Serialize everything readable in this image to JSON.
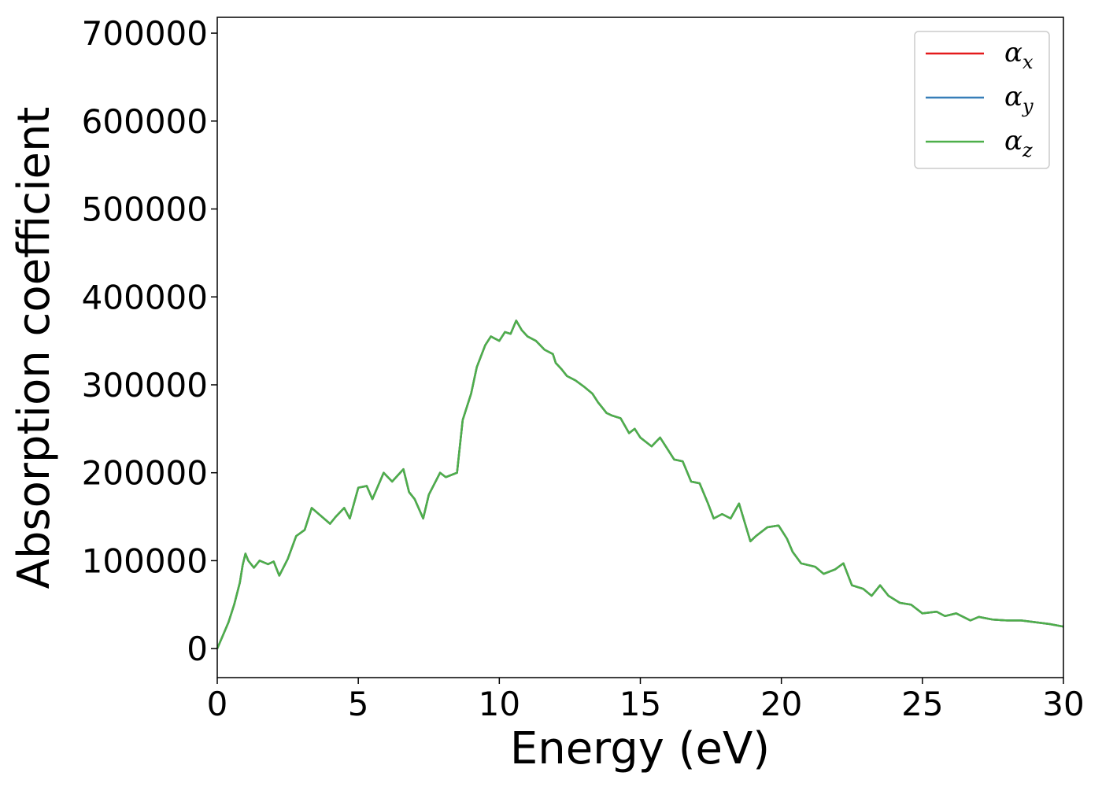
{
  "chart_data": {
    "type": "line",
    "title": "",
    "xlabel": "Energy (eV)",
    "ylabel": "Absorption coefficient",
    "xlim": [
      0,
      30
    ],
    "ylim": [
      -33000,
      718000
    ],
    "xticks": [
      0,
      5,
      10,
      15,
      20,
      25,
      30
    ],
    "yticks": [
      0,
      100000,
      200000,
      300000,
      400000,
      500000,
      600000,
      700000
    ],
    "grid": false,
    "legend_position": "top-right",
    "colors": {
      "x": "#e41a1c",
      "y": "#377eb8",
      "z": "#4daf4a"
    },
    "legend": [
      {
        "symbol": "α",
        "sub": "x"
      },
      {
        "symbol": "α",
        "sub": "y"
      },
      {
        "symbol": "α",
        "sub": "z"
      }
    ],
    "x": [
      0,
      0.2,
      0.4,
      0.6,
      0.8,
      0.9,
      1.0,
      1.1,
      1.3,
      1.5,
      1.8,
      2.0,
      2.2,
      2.5,
      2.8,
      3.1,
      3.35,
      3.6,
      4.0,
      4.2,
      4.5,
      4.7,
      5.0,
      5.3,
      5.5,
      5.9,
      6.2,
      6.6,
      6.8,
      7.0,
      7.3,
      7.5,
      7.9,
      8.1,
      8.5,
      8.7,
      9.0,
      9.2,
      9.5,
      9.7,
      10.0,
      10.2,
      10.4,
      10.6,
      10.8,
      11.0,
      11.3,
      11.6,
      11.9,
      12.0,
      12.2,
      12.4,
      12.7,
      13.0,
      13.3,
      13.5,
      13.8,
      14.0,
      14.3,
      14.6,
      14.8,
      15.0,
      15.4,
      15.7,
      15.9,
      16.2,
      16.5,
      16.8,
      17.1,
      17.4,
      17.6,
      17.9,
      18.2,
      18.5,
      18.9,
      19.1,
      19.5,
      19.9,
      20.2,
      20.4,
      20.7,
      21.2,
      21.5,
      21.9,
      22.2,
      22.5,
      22.9,
      23.2,
      23.5,
      23.8,
      24.2,
      24.6,
      25.0,
      25.5,
      25.8,
      26.2,
      26.7,
      27.0,
      27.5,
      28.0,
      28.5,
      29.0,
      29.5,
      30.0
    ],
    "series": [
      {
        "key": "x",
        "values": [
          0,
          15000,
          30000,
          50000,
          75000,
          95000,
          108000,
          100000,
          92000,
          100000,
          96000,
          99000,
          83000,
          102000,
          128000,
          135000,
          160000,
          153000,
          142000,
          150000,
          160000,
          148000,
          183000,
          185000,
          170000,
          200000,
          190000,
          204000,
          178000,
          170000,
          148000,
          175000,
          200000,
          195000,
          200000,
          260000,
          290000,
          320000,
          345000,
          355000,
          350000,
          360000,
          358000,
          373000,
          362000,
          355000,
          350000,
          340000,
          335000,
          325000,
          318000,
          310000,
          305000,
          298000,
          290000,
          280000,
          268000,
          265000,
          262000,
          245000,
          250000,
          240000,
          230000,
          240000,
          230000,
          215000,
          213000,
          190000,
          188000,
          165000,
          148000,
          153000,
          148000,
          165000,
          122000,
          128000,
          138000,
          140000,
          125000,
          110000,
          97000,
          93000,
          85000,
          90000,
          97000,
          72000,
          68000,
          60000,
          72000,
          60000,
          52000,
          50000,
          40000,
          42000,
          37000,
          40000,
          32000,
          36000,
          33000,
          32000,
          32000,
          30000,
          28000,
          25000
        ]
      },
      {
        "key": "y",
        "values": [
          0,
          15000,
          30000,
          50000,
          75000,
          95000,
          108000,
          100000,
          92000,
          100000,
          96000,
          99000,
          83000,
          102000,
          128000,
          135000,
          160000,
          153000,
          142000,
          150000,
          160000,
          148000,
          183000,
          185000,
          170000,
          200000,
          190000,
          204000,
          178000,
          170000,
          148000,
          175000,
          200000,
          195000,
          200000,
          260000,
          290000,
          320000,
          345000,
          355000,
          350000,
          360000,
          358000,
          373000,
          362000,
          355000,
          350000,
          340000,
          335000,
          325000,
          318000,
          310000,
          305000,
          298000,
          290000,
          280000,
          268000,
          265000,
          262000,
          245000,
          250000,
          240000,
          230000,
          240000,
          230000,
          215000,
          213000,
          190000,
          188000,
          165000,
          148000,
          153000,
          148000,
          165000,
          122000,
          128000,
          138000,
          140000,
          125000,
          110000,
          97000,
          93000,
          85000,
          90000,
          97000,
          72000,
          68000,
          60000,
          72000,
          60000,
          52000,
          50000,
          40000,
          42000,
          37000,
          40000,
          32000,
          36000,
          33000,
          32000,
          32000,
          30000,
          28000,
          25000
        ]
      },
      {
        "key": "z",
        "values": [
          0,
          15000,
          30000,
          50000,
          75000,
          95000,
          108000,
          100000,
          92000,
          100000,
          96000,
          99000,
          83000,
          102000,
          128000,
          135000,
          160000,
          153000,
          142000,
          150000,
          160000,
          148000,
          183000,
          185000,
          170000,
          200000,
          190000,
          204000,
          178000,
          170000,
          148000,
          175000,
          200000,
          195000,
          200000,
          260000,
          290000,
          320000,
          345000,
          355000,
          350000,
          360000,
          358000,
          373000,
          362000,
          355000,
          350000,
          340000,
          335000,
          325000,
          318000,
          310000,
          305000,
          298000,
          290000,
          280000,
          268000,
          265000,
          262000,
          245000,
          250000,
          240000,
          230000,
          240000,
          230000,
          215000,
          213000,
          190000,
          188000,
          165000,
          148000,
          153000,
          148000,
          165000,
          122000,
          128000,
          138000,
          140000,
          125000,
          110000,
          97000,
          93000,
          85000,
          90000,
          97000,
          72000,
          68000,
          60000,
          72000,
          60000,
          52000,
          50000,
          40000,
          42000,
          37000,
          40000,
          32000,
          36000,
          33000,
          32000,
          32000,
          30000,
          28000,
          25000
        ]
      }
    ]
  }
}
